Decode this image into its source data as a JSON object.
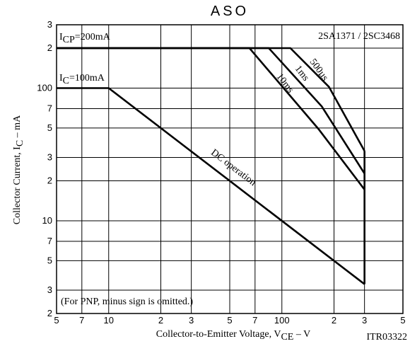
{
  "chart_data": {
    "type": "line",
    "title": "ASO",
    "xlabel": [
      "Collector-to-Emitter Voltage, V",
      "CE",
      " – V"
    ],
    "ylabel": [
      "Collector Current, I",
      "C",
      " – mA"
    ],
    "code": "ITR03322",
    "xscale": "log",
    "yscale": "log",
    "grid": true,
    "xlim": [
      5,
      500
    ],
    "ylim": [
      2,
      300
    ],
    "xticks": [
      5,
      7,
      10,
      {
        "value": 20,
        "label": "2"
      },
      {
        "value": 30,
        "label": "3"
      },
      {
        "value": 50,
        "label": "5"
      },
      {
        "value": 70,
        "label": "7"
      },
      100,
      {
        "value": 200,
        "label": "2"
      },
      {
        "value": 300,
        "label": "3"
      },
      {
        "value": 500,
        "label": "5"
      }
    ],
    "yticks": [
      {
        "value": 300,
        "label": "3"
      },
      {
        "value": 200,
        "label": "2"
      },
      100,
      {
        "value": 70,
        "label": "7"
      },
      {
        "value": 50,
        "label": "5"
      },
      {
        "value": 30,
        "label": "3"
      },
      {
        "value": 20,
        "label": "2"
      },
      10,
      7,
      5,
      3,
      2
    ],
    "series": [
      {
        "name": "DC operation",
        "color": "#000000",
        "x": [
          5,
          10,
          300
        ],
        "values": [
          100,
          100,
          3.33
        ]
      },
      {
        "name": "10ms",
        "color": "#000000",
        "x": [
          5,
          65,
          163,
          300
        ],
        "values": [
          200,
          200,
          49,
          17.2
        ]
      },
      {
        "name": "1ms",
        "color": "#000000",
        "x": [
          5,
          84,
          170,
          300
        ],
        "values": [
          200,
          200,
          72.7,
          22.7
        ]
      },
      {
        "name": "500µs",
        "color": "#000000",
        "x": [
          5,
          112,
          187,
          300
        ],
        "values": [
          200,
          200,
          102,
          33.6
        ]
      }
    ],
    "annotations": [
      {
        "parts": [
          "I",
          "CP",
          "=200mA"
        ]
      },
      {
        "parts": [
          "I",
          "C",
          "=100mA"
        ]
      },
      {
        "text": "2SA1371 / 2SC3468"
      },
      {
        "text": "(For PNP, minus sign is omitted.)"
      }
    ]
  }
}
